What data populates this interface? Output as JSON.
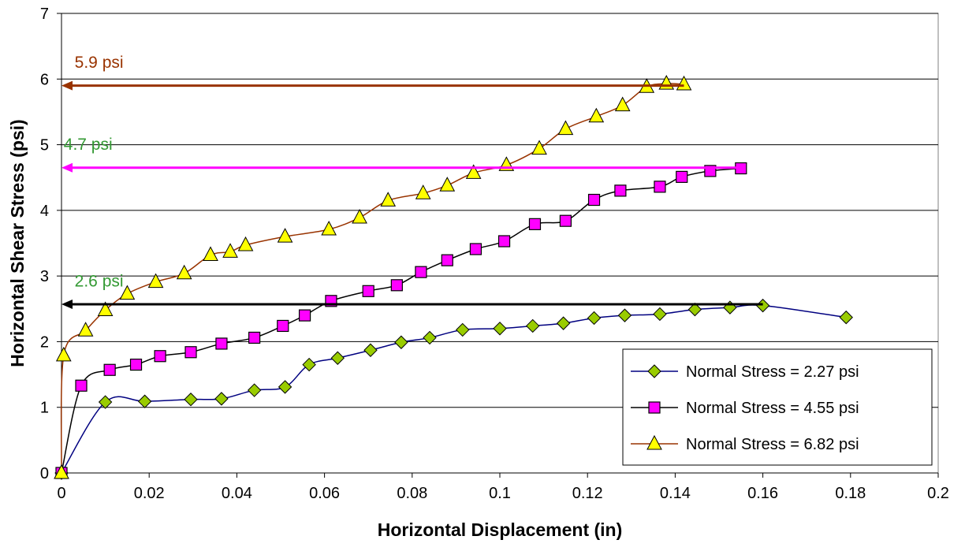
{
  "chart_data": {
    "type": "line",
    "title": "",
    "xlabel": "Horizontal Displacement (in)",
    "ylabel": "Horizontal Shear Stress (psi)",
    "xlim": [
      0,
      0.2
    ],
    "ylim": [
      0,
      7
    ],
    "x_ticks": [
      "0",
      "0.02",
      "0.04",
      "0.06",
      "0.08",
      "0.1",
      "0.12",
      "0.14",
      "0.16",
      "0.18",
      "0.2"
    ],
    "y_ticks": [
      "0",
      "1",
      "2",
      "3",
      "4",
      "5",
      "6",
      "7"
    ],
    "grid": "horizontal",
    "legend_position": "bottom-right",
    "series": [
      {
        "name": "Normal Stress = 2.27 psi",
        "marker": "diamond",
        "line_color": "#000080",
        "marker_fill": "#99cc00",
        "points": [
          [
            0,
            0
          ],
          [
            0.01,
            1.08
          ],
          [
            0.019,
            1.09
          ],
          [
            0.0295,
            1.12
          ],
          [
            0.0365,
            1.13
          ],
          [
            0.044,
            1.26
          ],
          [
            0.051,
            1.31
          ],
          [
            0.0565,
            1.65
          ],
          [
            0.063,
            1.75
          ],
          [
            0.0705,
            1.87
          ],
          [
            0.0775,
            1.99
          ],
          [
            0.084,
            2.06
          ],
          [
            0.0915,
            2.18
          ],
          [
            0.1,
            2.2
          ],
          [
            0.1075,
            2.24
          ],
          [
            0.1145,
            2.28
          ],
          [
            0.1215,
            2.36
          ],
          [
            0.1285,
            2.4
          ],
          [
            0.1365,
            2.42
          ],
          [
            0.1445,
            2.49
          ],
          [
            0.1525,
            2.52
          ],
          [
            0.16,
            2.55
          ],
          [
            0.179,
            2.37
          ]
        ]
      },
      {
        "name": "Normal Stress = 4.55 psi",
        "marker": "square",
        "line_color": "#000000",
        "marker_fill": "#ff00ff",
        "points": [
          [
            0,
            0
          ],
          [
            0.0045,
            1.33
          ],
          [
            0.011,
            1.57
          ],
          [
            0.017,
            1.65
          ],
          [
            0.0225,
            1.78
          ],
          [
            0.0295,
            1.84
          ],
          [
            0.0365,
            1.97
          ],
          [
            0.044,
            2.06
          ],
          [
            0.0505,
            2.24
          ],
          [
            0.0555,
            2.4
          ],
          [
            0.0615,
            2.62
          ],
          [
            0.07,
            2.77
          ],
          [
            0.0765,
            2.86
          ],
          [
            0.082,
            3.06
          ],
          [
            0.088,
            3.24
          ],
          [
            0.0945,
            3.41
          ],
          [
            0.101,
            3.53
          ],
          [
            0.108,
            3.79
          ],
          [
            0.115,
            3.84
          ],
          [
            0.1215,
            4.16
          ],
          [
            0.1275,
            4.3
          ],
          [
            0.1365,
            4.36
          ],
          [
            0.1415,
            4.51
          ],
          [
            0.148,
            4.6
          ],
          [
            0.155,
            4.64
          ]
        ]
      },
      {
        "name": "Normal Stress = 6.82 psi",
        "marker": "triangle",
        "line_color": "#993300",
        "marker_fill": "#ffff00",
        "points": [
          [
            0,
            0
          ],
          [
            0.0005,
            1.79
          ],
          [
            0.0055,
            2.17
          ],
          [
            0.01,
            2.48
          ],
          [
            0.015,
            2.73
          ],
          [
            0.0215,
            2.91
          ],
          [
            0.028,
            3.04
          ],
          [
            0.034,
            3.32
          ],
          [
            0.0385,
            3.37
          ],
          [
            0.042,
            3.47
          ],
          [
            0.051,
            3.6
          ],
          [
            0.061,
            3.71
          ],
          [
            0.068,
            3.89
          ],
          [
            0.0745,
            4.15
          ],
          [
            0.0825,
            4.26
          ],
          [
            0.088,
            4.38
          ],
          [
            0.094,
            4.57
          ],
          [
            0.1015,
            4.69
          ],
          [
            0.109,
            4.94
          ],
          [
            0.115,
            5.24
          ],
          [
            0.122,
            5.43
          ],
          [
            0.128,
            5.6
          ],
          [
            0.1335,
            5.88
          ],
          [
            0.138,
            5.93
          ],
          [
            0.142,
            5.92
          ]
        ]
      }
    ],
    "annotations": [
      {
        "text": "5.9 psi",
        "y": 5.9,
        "x_end": 0.142,
        "arrow_color": "#993300",
        "text_color": "#993300",
        "text_x": 0.003,
        "text_y": 6.17
      },
      {
        "text": "4.7 psi",
        "y": 4.65,
        "x_end": 0.155,
        "arrow_color": "#ff00ff",
        "text_color": "#339933",
        "text_x": 0.0005,
        "text_y": 4.92
      },
      {
        "text": "2.6 psi",
        "y": 2.57,
        "x_end": 0.16,
        "arrow_color": "#000000",
        "text_color": "#339933",
        "text_x": 0.003,
        "text_y": 2.84
      }
    ]
  }
}
